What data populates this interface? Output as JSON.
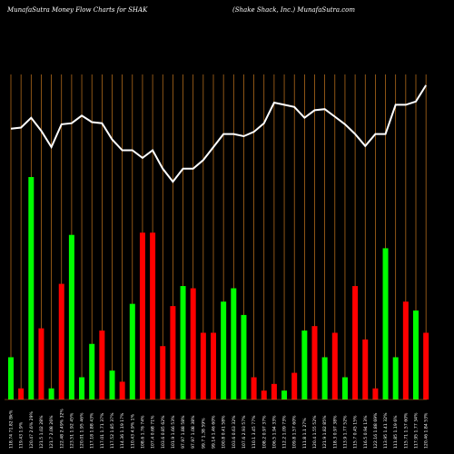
{
  "header": {
    "left": "MunafaSutra  Money Flow  Charts for SHAK",
    "right": "(Shake    Shack,  Inc.)  MunafaSutra.com"
  },
  "colors": {
    "background": "#000000",
    "grid": "#c8781e",
    "up": "#00ff00",
    "down": "#ff0000",
    "line": "#ffffff"
  },
  "chart_data": {
    "type": "bar",
    "title": "MunafaSutra  Money Flow  Charts for SHAK",
    "subtitle": "(Shake    Shack,  Inc.)  MunafaSutra.com",
    "categories": [
      "118.74  71.82 Bk%",
      "119.43  1.9%",
      "120.47  2.6%  29%",
      "121.5  1.02  28%",
      "121.7  2.08  26%",
      "122.48  2.49%  32%",
      "123.51  1.92  45%",
      "120.01  1.95  46%",
      "117.18  1.88  43%",
      "117.01  1.71  37%",
      "117.52  1.85  37%",
      "114.36  1.19  17%",
      "110.43  4.9%  1%",
      "108.6  1.76  74%",
      "107.4  0.68  71%",
      "103.6  0.85  62%",
      "101.9  1.66  53%",
      "97.97  1.88  58%",
      "97.97  1.08  38%",
      "99.7  1.38  59%",
      "99.14  1.46  60%",
      "100.8  0.41  58%",
      "103.6  0.63  32%",
      "107.6  2.93  57%",
      "110.1  3.45  77%",
      "108.2  0.97  37%",
      "106.5  1.94  33%",
      "112.2  1.09  73%",
      "109.8  1.57  60%",
      "111.8  1.1  27%",
      "120.4  1.55  52%",
      "121.9  1.82  85%",
      "118.3  0.97  38%",
      "113.9  1.77  52%",
      "115.7  0.45  15%",
      "116.5  0.94  13%",
      "122.16  1.88  69%",
      "113.95  1.41  32%",
      "111.85  1.19  6%",
      "115.71  1.57  60%",
      "117.95  1.77  34%",
      "120.46  1.84  53%"
    ],
    "direction": [
      "up",
      "down",
      "up",
      "down",
      "up",
      "down",
      "up",
      "up",
      "up",
      "down",
      "up",
      "down",
      "up",
      "down",
      "down",
      "down",
      "down",
      "up",
      "down",
      "down",
      "down",
      "up",
      "up",
      "up",
      "down",
      "down",
      "down",
      "up",
      "down",
      "up",
      "down",
      "up",
      "down",
      "up",
      "down",
      "down",
      "down",
      "up",
      "up",
      "down",
      "up",
      "down"
    ],
    "series": [
      {
        "values": [
          19,
          5,
          100,
          32,
          5,
          52,
          74,
          10,
          25,
          31,
          13,
          8,
          43,
          75,
          75,
          24,
          42,
          51,
          50,
          30,
          30,
          44,
          50,
          38,
          10,
          4,
          7,
          4,
          12,
          31,
          33,
          19,
          30,
          10,
          51,
          27,
          5,
          68,
          19,
          44,
          40,
          30
        ]
      },
      {
        "values": [
          250,
          251,
          260,
          248,
          233,
          254,
          255,
          262,
          256,
          255,
          240,
          230,
          230,
          223,
          230,
          213,
          201,
          213,
          213,
          221,
          233,
          245,
          245,
          243,
          247,
          255,
          274,
          272,
          270,
          260,
          267,
          268,
          261,
          254,
          245,
          234,
          245,
          245,
          272,
          272,
          275,
          290
        ]
      }
    ],
    "ylim": [
      0,
      300
    ],
    "grid": true
  }
}
